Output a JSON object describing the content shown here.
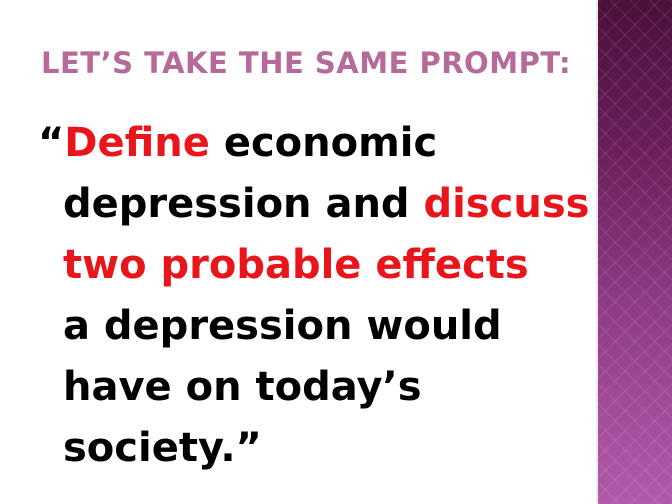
{
  "slide": {
    "title": "LET’S TAKE THE SAME PROMPT:",
    "quote": {
      "open_mark": "“",
      "line1_red": "Define",
      "line1_rest": " economic",
      "line2_black": "depression and ",
      "line2_red": "discuss",
      "line3_red": "two probable effects",
      "line4": "a depression would",
      "line5": "have on today’s",
      "line6": "society.”"
    }
  },
  "colors": {
    "title": "#b56a9a",
    "emphasis": "#e8151b",
    "body": "#000000",
    "band_top": "#4a0f3a",
    "band_bottom": "#b25aaa"
  }
}
